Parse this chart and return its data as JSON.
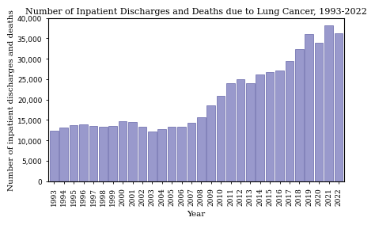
{
  "title": "Number of Inpatient Discharges and Deaths due to Lung Cancer, 1993-2022",
  "xlabel": "Year",
  "ylabel": "Number of inpatient discharges and deaths",
  "years": [
    1993,
    1994,
    1995,
    1996,
    1997,
    1998,
    1999,
    2000,
    2001,
    2002,
    2003,
    2004,
    2005,
    2006,
    2007,
    2008,
    2009,
    2010,
    2011,
    2012,
    2013,
    2014,
    2015,
    2016,
    2017,
    2018,
    2019,
    2020,
    2021,
    2022
  ],
  "values": [
    12400,
    13100,
    13700,
    13900,
    13500,
    13400,
    13500,
    14600,
    14500,
    13400,
    12100,
    12700,
    13400,
    13400,
    14400,
    15600,
    18500,
    21000,
    24000,
    25000,
    24000,
    26200,
    26800,
    27200,
    29400,
    32300,
    36000,
    34000,
    38100,
    36200
  ],
  "bar_color": "#9999cc",
  "bar_edgecolor": "#6666aa",
  "ylim": [
    0,
    40000
  ],
  "yticks": [
    0,
    5000,
    10000,
    15000,
    20000,
    25000,
    30000,
    35000,
    40000
  ],
  "background_color": "#ffffff",
  "plot_bg_color": "#ffffff",
  "title_fontsize": 8,
  "axis_label_fontsize": 7.5,
  "tick_fontsize": 6.5
}
